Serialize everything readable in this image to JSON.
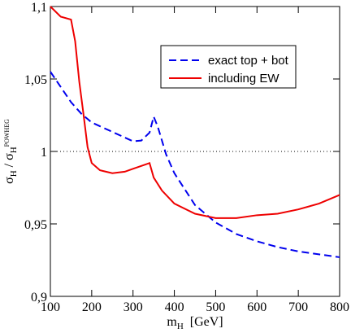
{
  "chart_data": {
    "type": "line",
    "xlabel": [
      "m",
      "H",
      "[GeV]"
    ],
    "ylabel": [
      "σ",
      "H",
      " / σ",
      "H",
      "POWHEG"
    ],
    "xlim": [
      100,
      800
    ],
    "xticks": [
      100,
      200,
      300,
      400,
      500,
      600,
      700,
      800
    ],
    "ylim": [
      0.9,
      1.1
    ],
    "yticks": [
      {
        "value": 0.9,
        "label": "0,9"
      },
      {
        "value": 0.95,
        "label": "0,95"
      },
      {
        "value": 1,
        "label": "1"
      },
      {
        "value": 1.05,
        "label": "1,05"
      },
      {
        "value": 1.1,
        "label": "1,1"
      }
    ],
    "hline": 1,
    "legend": "upper right",
    "series": [
      {
        "name": "exact top + bot",
        "color": "#0000ee",
        "dashed": true,
        "x": [
          100,
          150,
          175,
          200,
          250,
          300,
          320,
          340,
          350,
          360,
          380,
          400,
          450,
          500,
          550,
          600,
          650,
          700,
          750,
          800
        ],
        "values": [
          1.055,
          1.034,
          1.026,
          1.02,
          1.0135,
          1.007,
          1.0075,
          1.013,
          1.024,
          1.017,
          0.998,
          0.985,
          0.963,
          0.951,
          0.943,
          0.938,
          0.934,
          0.931,
          0.929,
          0.927
        ]
      },
      {
        "name": "including EW",
        "color": "#ee0000",
        "dashed": false,
        "x": [
          100,
          125,
          150,
          160,
          170,
          180,
          190,
          200,
          220,
          250,
          280,
          300,
          330,
          340,
          345,
          350,
          370,
          400,
          450,
          500,
          550,
          600,
          650,
          700,
          750,
          800
        ],
        "values": [
          1.1,
          1.093,
          1.091,
          1.076,
          1.048,
          1.026,
          1.003,
          0.992,
          0.987,
          0.985,
          0.986,
          0.988,
          0.991,
          0.992,
          0.987,
          0.982,
          0.973,
          0.964,
          0.957,
          0.954,
          0.954,
          0.956,
          0.957,
          0.96,
          0.964,
          0.97
        ]
      }
    ]
  }
}
